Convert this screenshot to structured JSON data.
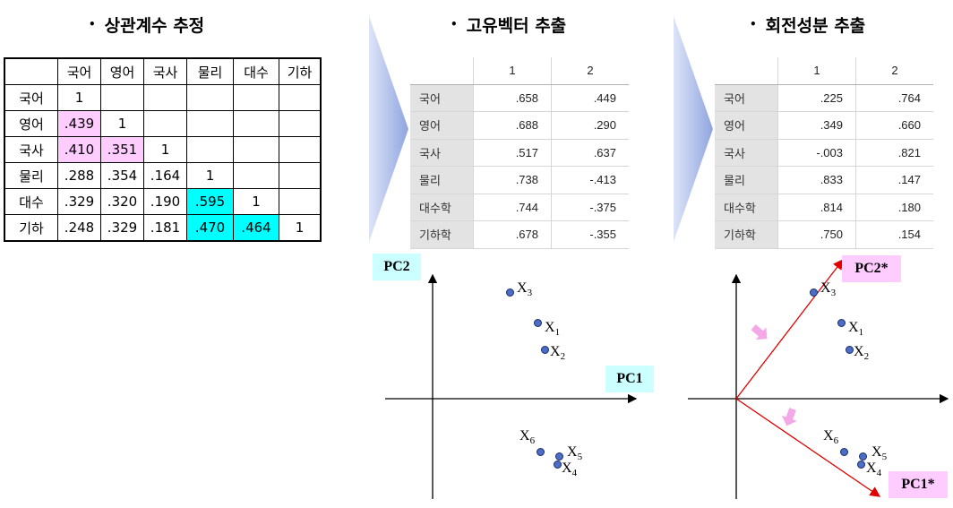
{
  "titles": {
    "corr": "상관계수 추정",
    "eigen": "고유벡터 추출",
    "rotated": "회전성분 추출"
  },
  "bullet": "•",
  "corr_table": {
    "headers": [
      "",
      "국어",
      "영어",
      "국사",
      "물리",
      "대수",
      "기하"
    ],
    "rows": [
      [
        "국어",
        "1",
        "",
        "",
        "",
        "",
        ""
      ],
      [
        "영어",
        ".439",
        "1",
        "",
        "",
        "",
        ""
      ],
      [
        "국사",
        ".410",
        ".351",
        "1",
        "",
        "",
        ""
      ],
      [
        "물리",
        ".288",
        ".354",
        ".164",
        "1",
        "",
        ""
      ],
      [
        "대수",
        ".329",
        ".320",
        ".190",
        ".595",
        "1",
        ""
      ],
      [
        "기하",
        ".248",
        ".329",
        ".181",
        ".470",
        ".464",
        "1"
      ]
    ]
  },
  "eigen_table": {
    "headers": [
      "",
      "1",
      "2"
    ],
    "rows": [
      [
        "국어",
        ".658",
        ".449"
      ],
      [
        "영어",
        ".688",
        ".290"
      ],
      [
        "국사",
        ".517",
        ".637"
      ],
      [
        "물리",
        ".738",
        "-.413"
      ],
      [
        "대수학",
        ".744",
        "-.375"
      ],
      [
        "기하학",
        ".678",
        "-.355"
      ]
    ]
  },
  "rotated_table": {
    "headers": [
      "",
      "1",
      "2"
    ],
    "rows": [
      [
        "국어",
        ".225",
        ".764"
      ],
      [
        "영어",
        ".349",
        ".660"
      ],
      [
        "국사",
        "-.003",
        ".821"
      ],
      [
        "물리",
        ".833",
        ".147"
      ],
      [
        "대수학",
        ".814",
        ".180"
      ],
      [
        "기하학",
        ".750",
        ".154"
      ]
    ]
  },
  "labels": {
    "pc1": "PC1",
    "pc2": "PC2",
    "pc1_star": "PC1*",
    "pc2_star": "PC2*"
  },
  "points": [
    {
      "base": "X",
      "sub": "1"
    },
    {
      "base": "X",
      "sub": "2"
    },
    {
      "base": "X",
      "sub": "3"
    },
    {
      "base": "X",
      "sub": "4"
    },
    {
      "base": "X",
      "sub": "5"
    },
    {
      "base": "X",
      "sub": "6"
    }
  ],
  "colors": {
    "pink_highlight": "#ffccff",
    "cyan_highlight": "#00ffff",
    "label_cyan": "#ccffff",
    "label_pink": "#ffccff",
    "point_fill": "#4a6dc5",
    "rotation_axis": "#e00000",
    "rotation_hint_arrow": "#f5a8e8",
    "step_arrow": "#8fa5e0"
  }
}
